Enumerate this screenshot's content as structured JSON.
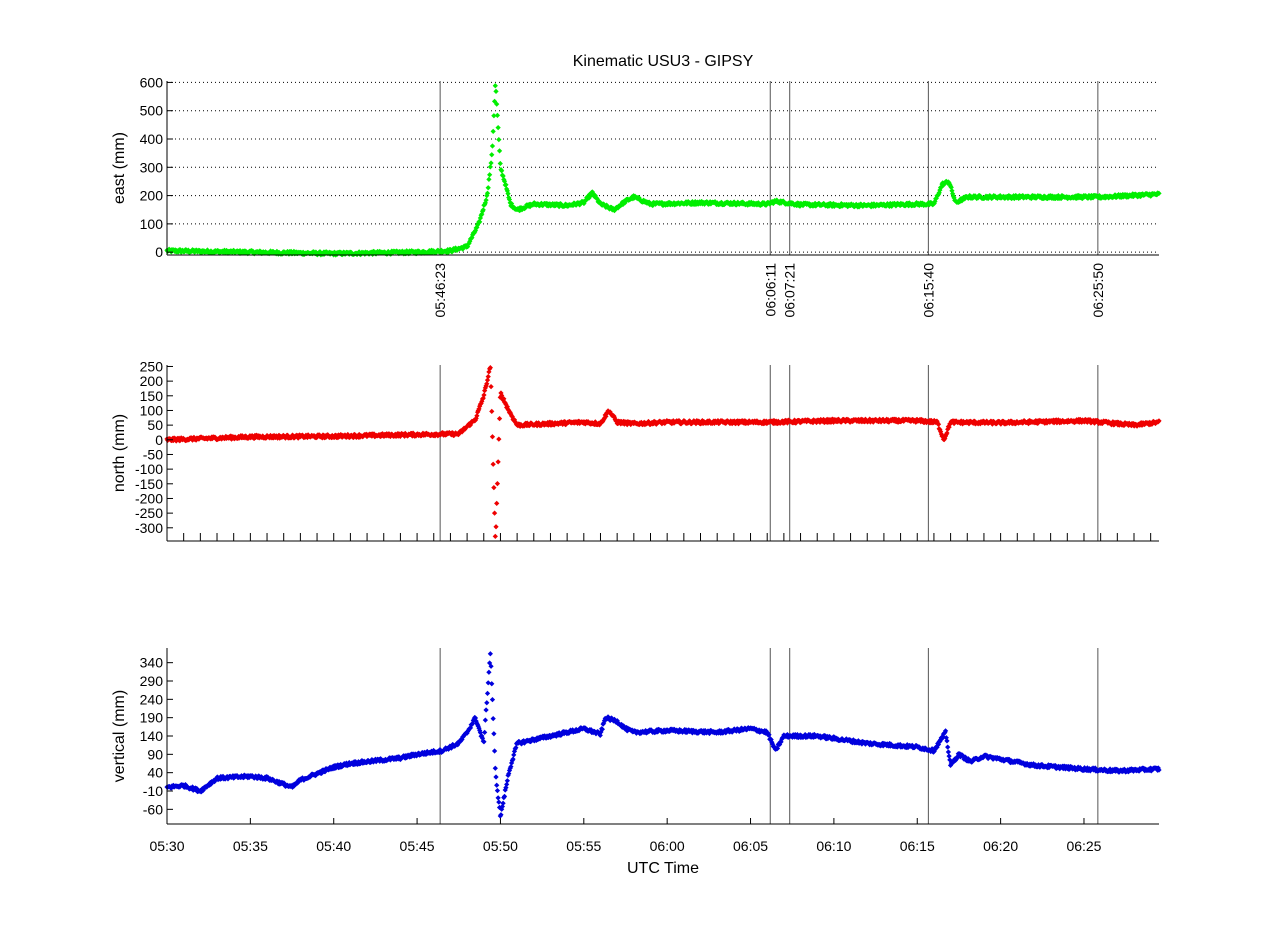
{
  "chart_data": {
    "type": "scatter",
    "title": "Kinematic USU3 - GIPSY",
    "xlabel": "UTC Time",
    "x_unit": "minutes after 05:30 UTC",
    "xlim": [
      0,
      59.5
    ],
    "x_ticks": [
      0,
      5,
      10,
      15,
      20,
      25,
      30,
      35,
      40,
      45,
      50,
      55
    ],
    "x_tick_labels": [
      "05:30",
      "05:35",
      "05:40",
      "05:45",
      "05:50",
      "05:55",
      "06:00",
      "06:05",
      "06:10",
      "06:15",
      "06:20",
      "06:25"
    ],
    "event_lines": [
      {
        "x": 16.383,
        "label": "05:46:23"
      },
      {
        "x": 36.183,
        "label": "06:06:11"
      },
      {
        "x": 37.35,
        "label": "06:07:21"
      },
      {
        "x": 45.667,
        "label": "06:15:40"
      },
      {
        "x": 55.833,
        "label": "06:25:50"
      }
    ],
    "panels": [
      {
        "name": "east",
        "ylabel": "east (mm)",
        "color": "#00ee00",
        "ylim": [
          -10,
          605
        ],
        "y_ticks": [
          0,
          100,
          200,
          300,
          400,
          500,
          600
        ],
        "grid": "dotted",
        "event_labels": true,
        "keypoints": [
          [
            0,
            5
          ],
          [
            5,
            0
          ],
          [
            10,
            -5
          ],
          [
            15,
            0
          ],
          [
            17,
            5
          ],
          [
            18,
            20
          ],
          [
            18.7,
            100
          ],
          [
            19.2,
            200
          ],
          [
            19.5,
            350
          ],
          [
            19.7,
            600
          ],
          [
            20,
            300
          ],
          [
            20.3,
            240
          ],
          [
            20.6,
            170
          ],
          [
            21,
            150
          ],
          [
            22,
            170
          ],
          [
            24,
            165
          ],
          [
            25,
            175
          ],
          [
            25.5,
            210
          ],
          [
            26,
            170
          ],
          [
            26.8,
            150
          ],
          [
            27.5,
            180
          ],
          [
            28,
            195
          ],
          [
            29,
            170
          ],
          [
            32,
            175
          ],
          [
            36,
            170
          ],
          [
            36.5,
            180
          ],
          [
            38,
            168
          ],
          [
            42,
            165
          ],
          [
            45,
            170
          ],
          [
            46,
            170
          ],
          [
            46.5,
            240
          ],
          [
            46.9,
            250
          ],
          [
            47.3,
            175
          ],
          [
            48,
            195
          ],
          [
            52,
            195
          ],
          [
            56,
            195
          ],
          [
            59.5,
            205
          ]
        ]
      },
      {
        "name": "north",
        "ylabel": "north (mm)",
        "color": "#ee0000",
        "ylim": [
          -345,
          255
        ],
        "y_ticks": [
          -300,
          -250,
          -200,
          -150,
          -100,
          -50,
          0,
          50,
          100,
          150,
          200,
          250
        ],
        "grid": "none",
        "minor_ticks": true,
        "keypoints": [
          [
            0,
            0
          ],
          [
            5,
            10
          ],
          [
            10,
            12
          ],
          [
            15,
            18
          ],
          [
            17.5,
            20
          ],
          [
            18.5,
            70
          ],
          [
            19,
            150
          ],
          [
            19.4,
            250
          ],
          [
            19.7,
            -350
          ],
          [
            20,
            160
          ],
          [
            20.5,
            100
          ],
          [
            21,
            50
          ],
          [
            23,
            55
          ],
          [
            25,
            60
          ],
          [
            26,
            55
          ],
          [
            26.5,
            100
          ],
          [
            27,
            60
          ],
          [
            28,
            55
          ],
          [
            30,
            60
          ],
          [
            36,
            60
          ],
          [
            40,
            65
          ],
          [
            45,
            65
          ],
          [
            46.2,
            60
          ],
          [
            46.6,
            0
          ],
          [
            47,
            60
          ],
          [
            50,
            58
          ],
          [
            55,
            65
          ],
          [
            58,
            50
          ],
          [
            59.5,
            60
          ]
        ]
      },
      {
        "name": "vertical",
        "ylabel": "vertical (mm)",
        "color": "#0000dd",
        "ylim": [
          -100,
          380
        ],
        "y_ticks": [
          -60,
          -10,
          40,
          90,
          140,
          190,
          240,
          290,
          340
        ],
        "grid": "none",
        "keypoints": [
          [
            0,
            0
          ],
          [
            1,
            5
          ],
          [
            2,
            -10
          ],
          [
            3,
            25
          ],
          [
            5,
            30
          ],
          [
            6,
            25
          ],
          [
            7.5,
            0
          ],
          [
            8,
            20
          ],
          [
            10,
            55
          ],
          [
            11,
            65
          ],
          [
            14,
            80
          ],
          [
            15,
            90
          ],
          [
            16.5,
            100
          ],
          [
            17.5,
            120
          ],
          [
            18,
            150
          ],
          [
            18.5,
            190
          ],
          [
            19,
            120
          ],
          [
            19.4,
            370
          ],
          [
            19.7,
            40
          ],
          [
            20,
            -80
          ],
          [
            20.5,
            40
          ],
          [
            21,
            120
          ],
          [
            22,
            130
          ],
          [
            24,
            150
          ],
          [
            25,
            160
          ],
          [
            26,
            145
          ],
          [
            26.3,
            190
          ],
          [
            27,
            180
          ],
          [
            27.5,
            160
          ],
          [
            28,
            150
          ],
          [
            30,
            155
          ],
          [
            33,
            150
          ],
          [
            35,
            160
          ],
          [
            36,
            150
          ],
          [
            36.5,
            100
          ],
          [
            37,
            140
          ],
          [
            39,
            140
          ],
          [
            42,
            120
          ],
          [
            45,
            110
          ],
          [
            46,
            100
          ],
          [
            46.7,
            150
          ],
          [
            47,
            60
          ],
          [
            47.5,
            90
          ],
          [
            48.2,
            70
          ],
          [
            49,
            85
          ],
          [
            52,
            60
          ],
          [
            55,
            50
          ],
          [
            57,
            45
          ],
          [
            59.5,
            50
          ]
        ]
      }
    ]
  }
}
